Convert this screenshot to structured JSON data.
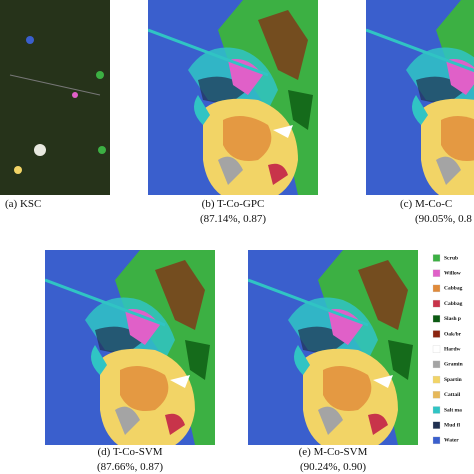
{
  "panels": [
    {
      "caption": "(a) KSC"
    },
    {
      "caption": "(b) T-Co-GPC",
      "score": "(87.14%, 0.87)"
    },
    {
      "caption": "(c) M-Co-C",
      "score": "(90.05%, 0.8"
    },
    {
      "caption": "(d) T-Co-SVM",
      "score": "(87.66%, 0.87)"
    },
    {
      "caption": "(e) M-Co-SVM",
      "score": "(90.24%, 0.90)"
    }
  ],
  "legend": [
    {
      "label": "Scrub",
      "color": "#3cb043"
    },
    {
      "label": "Willow",
      "color": "#e060c8"
    },
    {
      "label": "Cabbag",
      "color": "#e08a3a"
    },
    {
      "label": "Cabbag",
      "color": "#c8344a"
    },
    {
      "label": "Slash p",
      "color": "#0b5a12"
    },
    {
      "label": "Oak/br",
      "color": "#8b2410"
    },
    {
      "label": "Hardw",
      "color": "#ffffff"
    },
    {
      "label": "Gramin",
      "color": "#a4a4a4"
    },
    {
      "label": "Spartin",
      "color": "#f2d466"
    },
    {
      "label": "Cattail",
      "color": "#e6b85a"
    },
    {
      "label": "Salt ma",
      "color": "#30c4c4"
    },
    {
      "label": "Mud fl",
      "color": "#203050"
    },
    {
      "label": "Water",
      "color": "#3a5fcd"
    }
  ]
}
